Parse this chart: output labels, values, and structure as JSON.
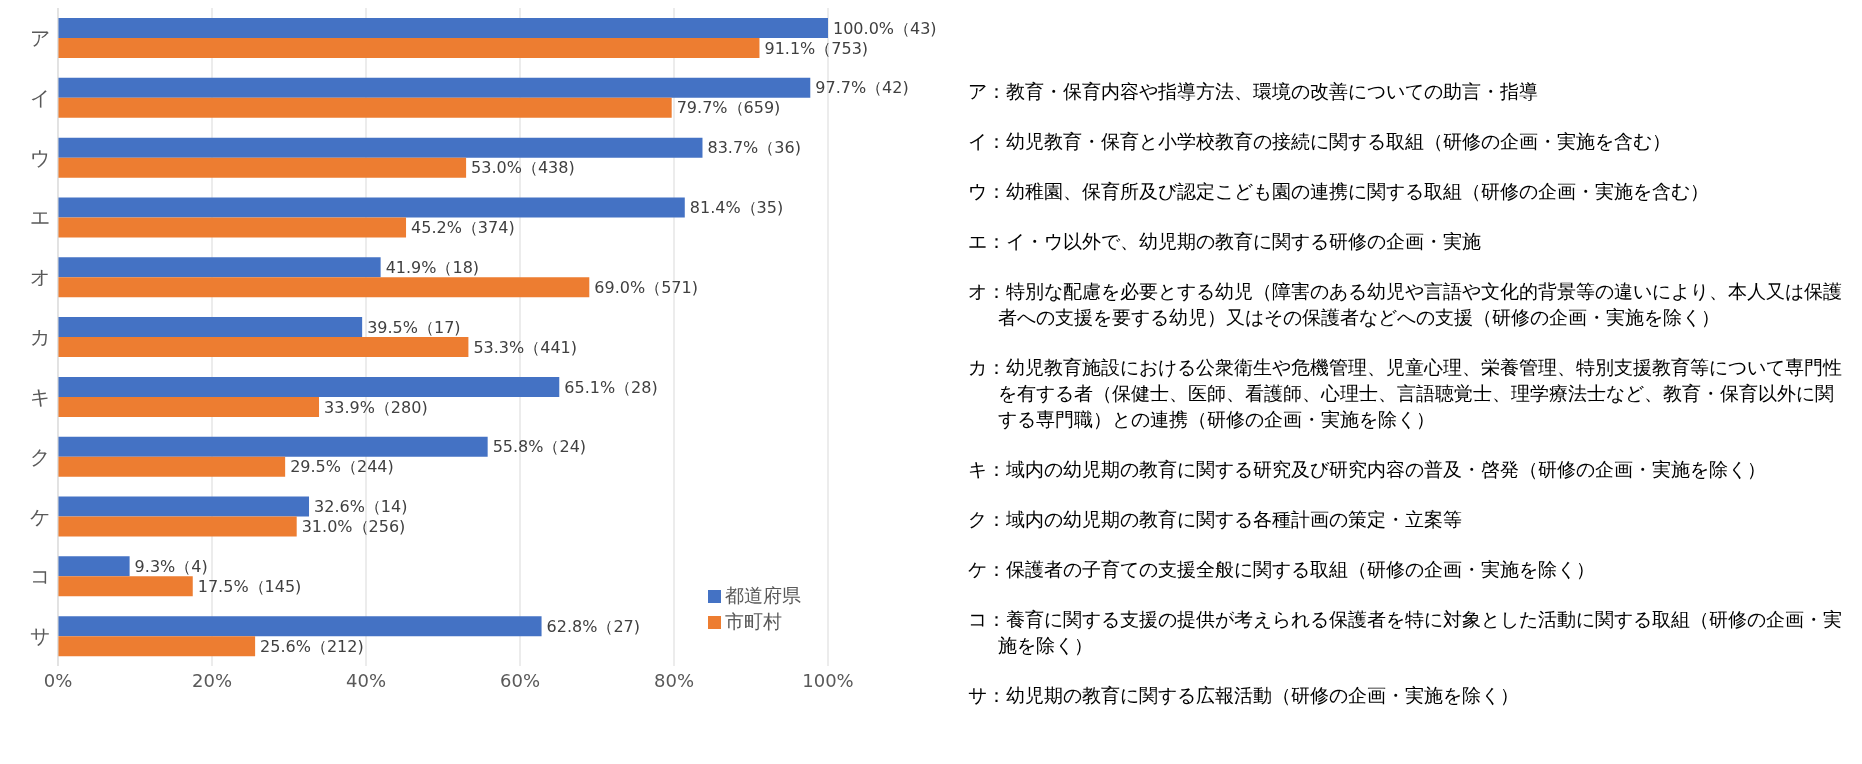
{
  "chart_data": {
    "type": "bar",
    "orientation": "horizontal",
    "categories": [
      "ア",
      "イ",
      "ウ",
      "エ",
      "オ",
      "カ",
      "キ",
      "ク",
      "ケ",
      "コ",
      "サ"
    ],
    "series": [
      {
        "name": "都道府県",
        "color": "#4472c4",
        "values": [
          100.0,
          97.7,
          83.7,
          81.4,
          41.9,
          39.5,
          65.1,
          55.8,
          32.6,
          9.3,
          62.8
        ],
        "value_labels": [
          "100.0%（43)",
          "97.7%（42)",
          "83.7%（36)",
          "81.4%（35)",
          "41.9%（18)",
          "39.5%（17)",
          "65.1%（28)",
          "55.8%（24)",
          "32.6%（14)",
          "9.3%（4)",
          "62.8%（27)"
        ]
      },
      {
        "name": "市町村",
        "color": "#ed7d31",
        "values": [
          91.1,
          79.7,
          53.0,
          45.2,
          69.0,
          53.3,
          33.9,
          29.5,
          31.0,
          17.5,
          25.6
        ],
        "value_labels": [
          "91.1%（753)",
          "79.7%（659)",
          "53.0%（438)",
          "45.2%（374)",
          "69.0%（571)",
          "53.3%（441)",
          "33.9%（280)",
          "29.5%（244)",
          "31.0%（256)",
          "17.5%（145)",
          "25.6%（212)"
        ]
      }
    ],
    "xlim": [
      0,
      100
    ],
    "xticks": [
      {
        "value": 0,
        "label": "0%"
      },
      {
        "value": 20,
        "label": "20%"
      },
      {
        "value": 40,
        "label": "40%"
      },
      {
        "value": 60,
        "label": "60%"
      },
      {
        "value": 80,
        "label": "80%"
      },
      {
        "value": 100,
        "label": "100%"
      }
    ],
    "grid": "x",
    "legend": "bottom right",
    "annotations": [
      "ア：教育・保育内容や指導方法、環境の改善についての助言・指導",
      "イ：幼児教育・保育と小学校教育の接続に関する取組（研修の企画・実施を含む）",
      "ウ：幼稚園、保育所及び認定こども園の連携に関する取組（研修の企画・実施を含む）",
      "エ：イ・ウ以外で、幼児期の教育に関する研修の企画・実施",
      "オ：特別な配慮を必要とする幼児（障害のある幼児や言語や文化的背景等の違いにより、本人又は保護者への支援を要する幼児）又はその保護者などへの支援（研修の企画・実施を除く）",
      "カ：幼児教育施設における公衆衛生や危機管理、児童心理、栄養管理、特別支援教育等について専門性を有する者（保健士、医師、看護師、心理士、言語聴覚士、理学療法士など、教育・保育以外に関する専門職）との連携（研修の企画・実施を除く）",
      "キ：域内の幼児期の教育に関する研究及び研究内容の普及・啓発（研修の企画・実施を除く）",
      "ク：域内の幼児期の教育に関する各種計画の策定・立案等",
      "ケ：保護者の子育ての支援全般に関する取組（研修の企画・実施を除く）",
      "コ：養育に関する支援の提供が考えられる保護者を特に対象とした活動に関する取組（研修の企画・実施を除く）",
      "サ：幼児期の教育に関する広報活動（研修の企画・実施を除く）"
    ]
  }
}
